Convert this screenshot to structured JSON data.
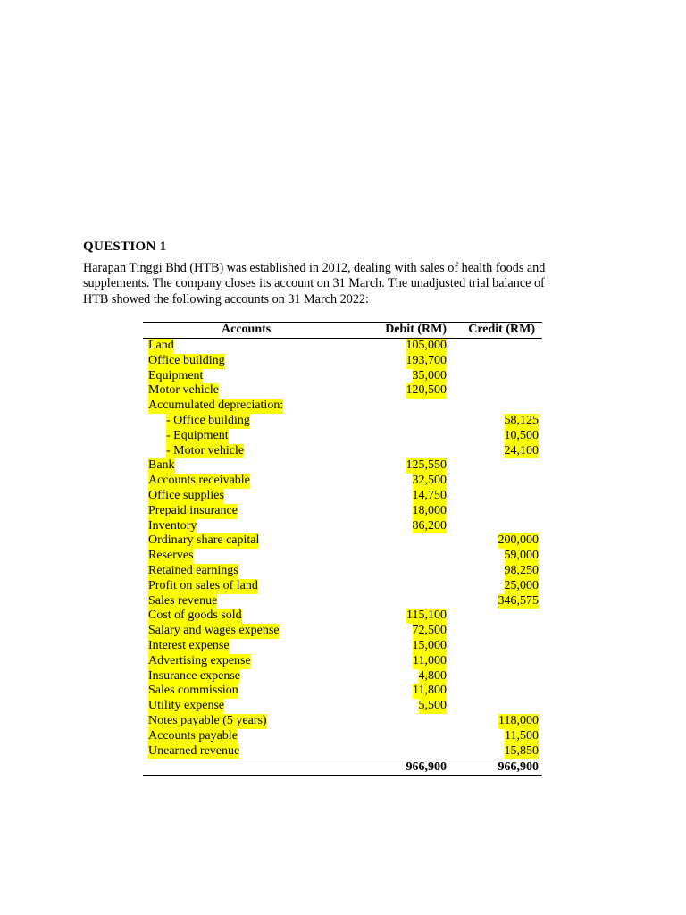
{
  "question": {
    "title": "QUESTION 1",
    "paragraph_lines": [
      "Harapan Tinggi Bhd (HTB) was established in 2012, dealing with sales of health foods and",
      "supplements. The company closes its account on 31 March. The unadjusted trial balance of",
      "HTB showed the following accounts on 31 March 2022:"
    ]
  },
  "table": {
    "headers": {
      "accounts": "Accounts",
      "debit": "Debit (RM)",
      "credit": "Credit (RM)"
    },
    "highlight_color": "#ffff00",
    "rows": [
      {
        "account": "Land",
        "debit": "105,000",
        "credit": ""
      },
      {
        "account": "Office building",
        "debit": "193,700",
        "credit": ""
      },
      {
        "account": "Equipment",
        "debit": "35,000",
        "credit": ""
      },
      {
        "account": "Motor vehicle",
        "debit": "120,500",
        "credit": ""
      },
      {
        "account": "Accumulated depreciation:",
        "debit": "",
        "credit": ""
      },
      {
        "account": "- Office building",
        "debit": "",
        "credit": "58,125",
        "sub": true
      },
      {
        "account": "- Equipment",
        "debit": "",
        "credit": "10,500",
        "sub": true
      },
      {
        "account": "- Motor vehicle",
        "debit": "",
        "credit": "24,100",
        "sub": true
      },
      {
        "account": "Bank",
        "debit": "125,550",
        "credit": ""
      },
      {
        "account": "Accounts receivable",
        "debit": "32,500",
        "credit": ""
      },
      {
        "account": "Office supplies",
        "debit": "14,750",
        "credit": ""
      },
      {
        "account": "Prepaid insurance",
        "debit": "18,000",
        "credit": ""
      },
      {
        "account": "Inventory",
        "debit": "86,200",
        "credit": ""
      },
      {
        "account": "Ordinary share capital",
        "debit": "",
        "credit": "200,000"
      },
      {
        "account": "Reserves",
        "debit": "",
        "credit": "59,000"
      },
      {
        "account": "Retained earnings",
        "debit": "",
        "credit": "98,250"
      },
      {
        "account": "Profit on sales of land",
        "debit": "",
        "credit": "25,000"
      },
      {
        "account": "Sales revenue",
        "debit": "",
        "credit": "346,575"
      },
      {
        "account": "Cost of goods sold",
        "debit": "115,100",
        "credit": ""
      },
      {
        "account": "Salary and wages expense",
        "debit": "72,500",
        "credit": ""
      },
      {
        "account": "Interest expense",
        "debit": "15,000",
        "credit": ""
      },
      {
        "account": "Advertising expense",
        "debit": "11,000",
        "credit": ""
      },
      {
        "account": "Insurance expense",
        "debit": "4,800",
        "credit": ""
      },
      {
        "account": "Sales commission",
        "debit": "11,800",
        "credit": ""
      },
      {
        "account": "Utility expense",
        "debit": "5,500",
        "credit": ""
      },
      {
        "account": "Notes payable (5 years)",
        "debit": "",
        "credit": "118,000"
      },
      {
        "account": "Accounts payable",
        "debit": "",
        "credit": "11,500"
      },
      {
        "account": "Unearned revenue",
        "debit": "",
        "credit": "15,850"
      }
    ],
    "totals": {
      "debit": "966,900",
      "credit": "966,900"
    }
  }
}
